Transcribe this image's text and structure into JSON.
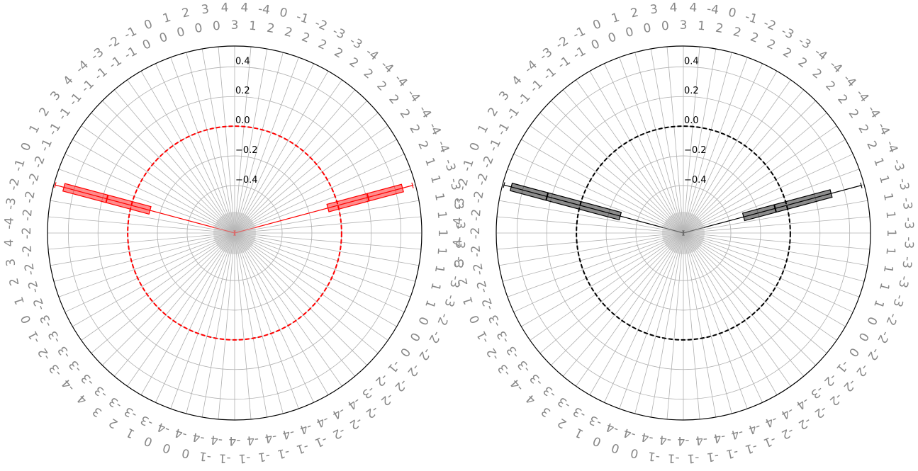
{
  "chart_data": [
    {
      "type": "polar-boxplot",
      "title": "",
      "rlim": [
        -0.72,
        0.54
      ],
      "r_ticks": [
        -0.4,
        -0.2,
        0.0,
        0.2,
        0.4
      ],
      "r_tick_labels": [
        "−0.4",
        "−0.2",
        "0.0",
        "0.2",
        "0.4"
      ],
      "grid": true,
      "reference_circle": {
        "value": 0.0,
        "style": "dashed",
        "color": "#ff0000"
      },
      "color": "#ff0000",
      "fill_alpha": 0.45,
      "boxes": [
        {
          "angle_deg": 15,
          "q1": -0.07,
          "median": 0.21,
          "q3": 0.45,
          "whisker_low": -0.72,
          "whisker_high": 0.52
        },
        {
          "angle_deg": 165,
          "q1": -0.13,
          "median": 0.17,
          "q3": 0.47,
          "whisker_low": -0.72,
          "whisker_high": 0.53
        }
      ],
      "ring_labels_outer": [
        "4",
        "-4",
        "0",
        "-1",
        "-2",
        "-3",
        "-3",
        "-4",
        "-4",
        "-4",
        "-4",
        "-4",
        "-4",
        "-4",
        "-3",
        "-3",
        "-3",
        "-3",
        "-3",
        "-3",
        "-3",
        "-3",
        "-2",
        "-2",
        "-2",
        "-2",
        "-2",
        "-2",
        "-2",
        "-2",
        "-2",
        "-1",
        "-1",
        "-1",
        "-1",
        "-1",
        "-1",
        "-1",
        "0",
        "0",
        "0",
        "1",
        "2",
        "3",
        "4",
        "-4",
        "-3",
        "-2",
        "-1",
        "0",
        "1",
        "2",
        "3",
        "4",
        "-4",
        "-3",
        "-2",
        "-1",
        "0",
        "1",
        "2",
        "3",
        "4",
        "-4",
        "-3",
        "-2",
        "-1",
        "0",
        "1",
        "2",
        "3",
        "4"
      ],
      "ring_labels_inner": [
        "3",
        "1",
        "2",
        "2",
        "2",
        "2",
        "2",
        "2",
        "2",
        "2",
        "2",
        "2",
        "2",
        "2",
        "1",
        "1",
        "1",
        "1",
        "1",
        "1",
        "1",
        "1",
        "1",
        "0",
        "0",
        "0",
        "-1",
        "-2",
        "-3",
        "-4",
        "-4",
        "-4",
        "-4",
        "-4",
        "-4",
        "-4",
        "-4",
        "-4",
        "-4",
        "-4",
        "-4",
        "-3",
        "-3",
        "-3",
        "-3",
        "-3",
        "-3",
        "-3",
        "-3",
        "-3",
        "-2",
        "-2",
        "-2",
        "-2",
        "-2",
        "-2",
        "-2",
        "-2",
        "-2",
        "-1",
        "-1",
        "-1",
        "-1",
        "-1",
        "-1",
        "-1",
        "-1",
        "0",
        "0",
        "0",
        "0",
        "0"
      ]
    },
    {
      "type": "polar-boxplot",
      "title": "",
      "rlim": [
        -0.72,
        0.54
      ],
      "r_ticks": [
        -0.4,
        -0.2,
        0.0,
        0.2,
        0.4
      ],
      "r_tick_labels": [
        "−0.4",
        "−0.2",
        "0.0",
        "0.2",
        "0.4"
      ],
      "grid": true,
      "reference_circle": {
        "value": 0.0,
        "style": "dashed",
        "color": "#000000"
      },
      "color": "#000000",
      "fill_alpha": 0.45,
      "boxes": [
        {
          "angle_deg": 15,
          "q1": -0.3,
          "median": -0.08,
          "q3": 0.31,
          "whisker_low": -0.72,
          "whisker_high": 0.52
        },
        {
          "angle_deg": 165,
          "q1": -0.28,
          "median": 0.23,
          "q3": 0.48,
          "whisker_low": -0.72,
          "whisker_high": 0.53
        }
      ],
      "ring_labels_outer": [
        "4",
        "-4",
        "0",
        "-1",
        "-2",
        "-3",
        "-3",
        "-4",
        "-4",
        "-4",
        "-4",
        "-4",
        "-4",
        "-4",
        "-3",
        "-3",
        "-3",
        "-3",
        "-3",
        "-3",
        "-3",
        "-3",
        "-2",
        "-2",
        "-2",
        "-2",
        "-2",
        "-2",
        "-2",
        "-2",
        "-2",
        "-1",
        "-1",
        "-1",
        "-1",
        "-1",
        "-1",
        "-1",
        "0",
        "0",
        "0",
        "1",
        "2",
        "3",
        "4",
        "-4",
        "-3",
        "-2",
        "-1",
        "0",
        "1",
        "2",
        "3",
        "4",
        "-4",
        "-3",
        "-2",
        "-1",
        "0",
        "1",
        "2",
        "3",
        "4",
        "-4",
        "-3",
        "-2",
        "-1",
        "0",
        "1",
        "2",
        "3",
        "4"
      ],
      "ring_labels_inner": [
        "3",
        "1",
        "2",
        "2",
        "2",
        "2",
        "2",
        "2",
        "2",
        "2",
        "2",
        "2",
        "2",
        "2",
        "1",
        "1",
        "1",
        "1",
        "1",
        "1",
        "1",
        "1",
        "1",
        "0",
        "0",
        "0",
        "-1",
        "-2",
        "-3",
        "-4",
        "-4",
        "-4",
        "-4",
        "-4",
        "-4",
        "-4",
        "-4",
        "-4",
        "-4",
        "-4",
        "-4",
        "-3",
        "-3",
        "-3",
        "-3",
        "-3",
        "-3",
        "-3",
        "-3",
        "-3",
        "-2",
        "-2",
        "-2",
        "-2",
        "-2",
        "-2",
        "-2",
        "-2",
        "-2",
        "-1",
        "-1",
        "-1",
        "-1",
        "-1",
        "-1",
        "-1",
        "-1",
        "0",
        "0",
        "0",
        "0",
        "0"
      ]
    }
  ]
}
